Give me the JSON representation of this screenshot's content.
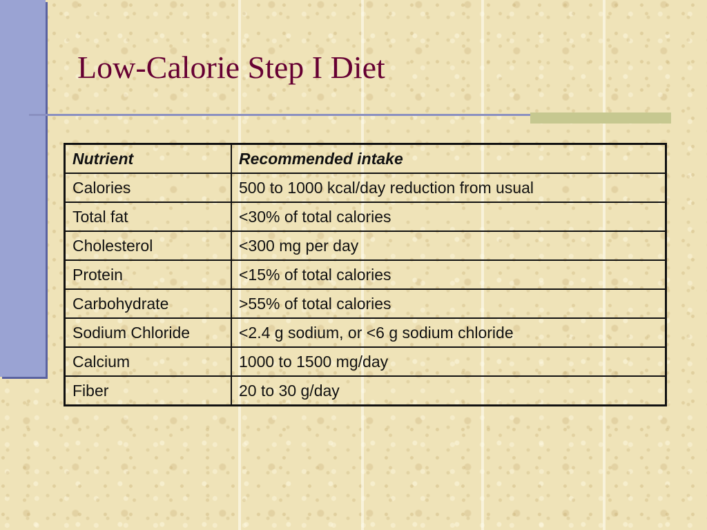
{
  "slide": {
    "title": "Low-Calorie Step I Diet"
  },
  "colors": {
    "background": "#efe3b8",
    "left_bar": "#9aa3d3",
    "title": "#660033",
    "rule": "#8a90c0",
    "rule_accent": "#c6c890"
  },
  "table": {
    "headers": [
      "Nutrient",
      "Recommended intake"
    ],
    "rows": [
      [
        "Calories",
        "500 to 1000 kcal/day reduction from usual"
      ],
      [
        "Total fat",
        "<30% of total calories"
      ],
      [
        "Cholesterol",
        "<300 mg per day"
      ],
      [
        "Protein",
        "<15% of total calories"
      ],
      [
        "Carbohydrate",
        ">55% of total calories"
      ],
      [
        "Sodium Chloride",
        "<2.4 g sodium, or <6 g sodium chloride"
      ],
      [
        "Calcium",
        "1000 to 1500 mg/day"
      ],
      [
        "Fiber",
        "20 to 30 g/day"
      ]
    ]
  }
}
